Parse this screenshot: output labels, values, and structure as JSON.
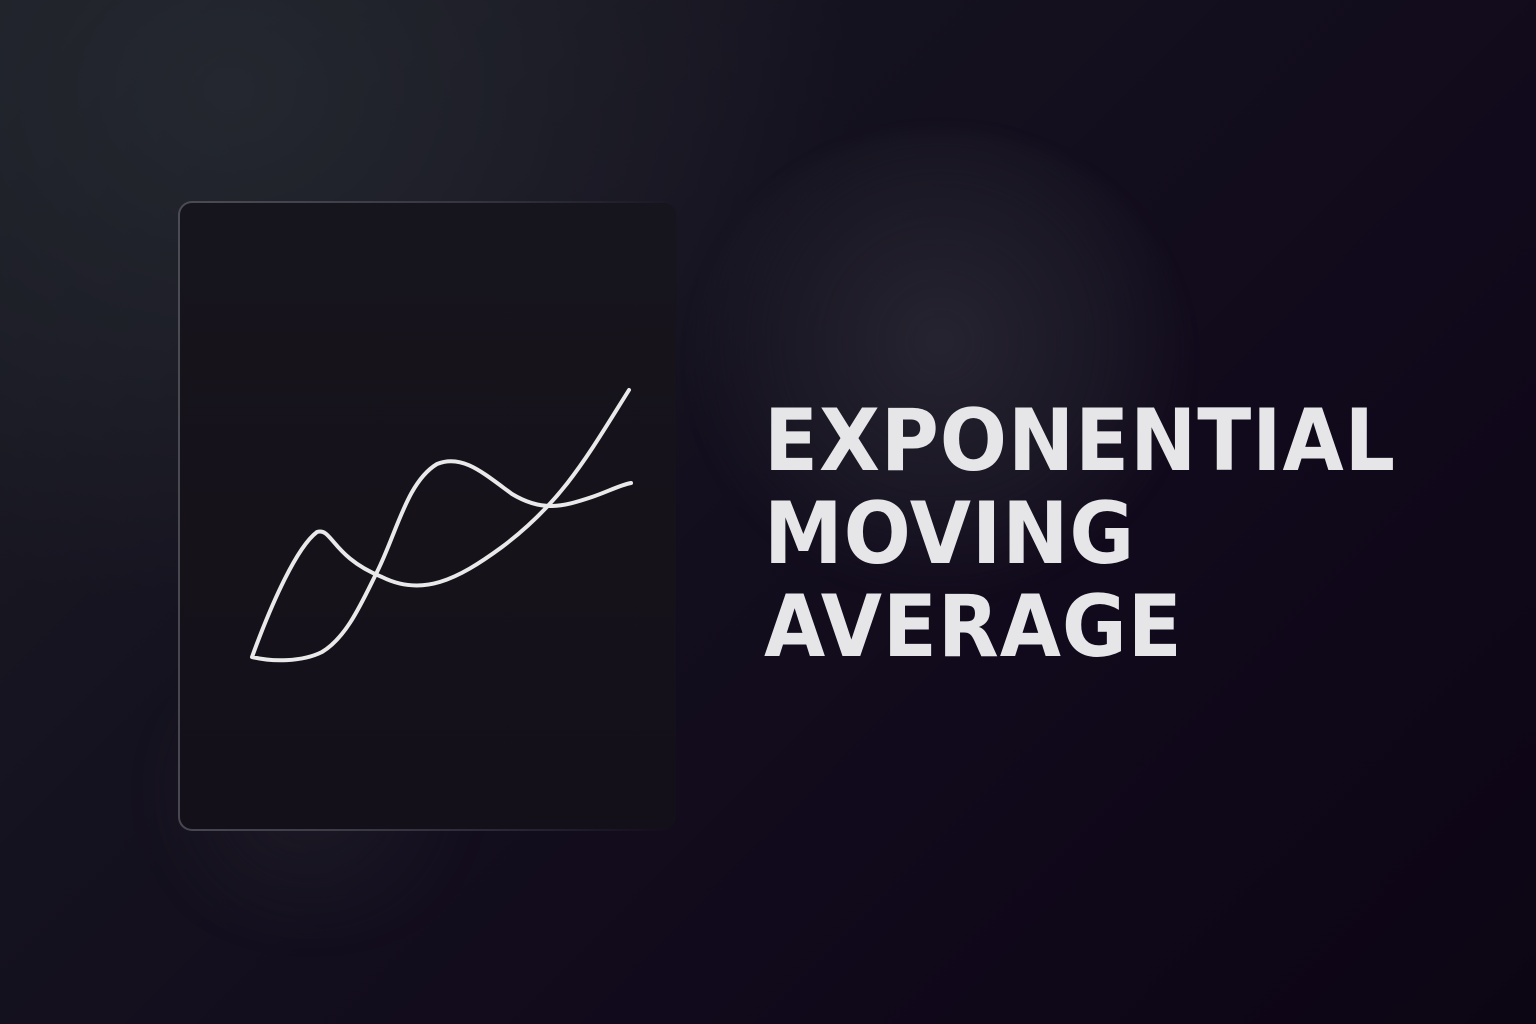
{
  "headline": {
    "lines": [
      "EXPONENTIAL",
      "MOVING",
      "AVERAGE"
    ]
  },
  "icon": {
    "name": "line-chart-icon",
    "stroke_color": "#e9e9ea"
  },
  "colors": {
    "background": "#0f0918",
    "text": "#e6e6e8"
  }
}
